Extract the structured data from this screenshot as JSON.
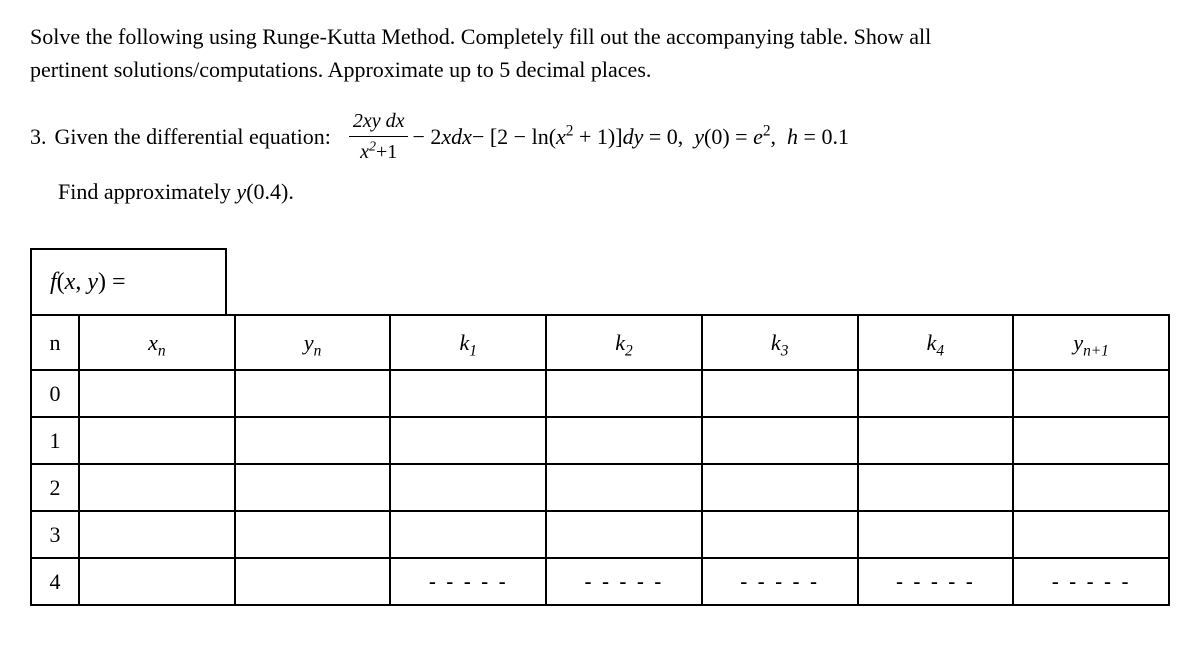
{
  "instruction_line1": "Solve the following using Runge-Kutta Method. Completely fill out the accompanying table. Show all",
  "instruction_line2": "pertinent solutions/computations. Approximate up to 5 decimal places.",
  "problem": {
    "number": "3.",
    "lead_text": "Given the differential equation:",
    "frac_num": "2xy dx",
    "frac_den_left": "x",
    "frac_den_sup": "2",
    "frac_den_right": "+1",
    "minus1": " − 2",
    "xdx": "xdx",
    "minus2": " − [2 − ln(",
    "x2": "x",
    "x2_sup": "2",
    "plus1": " + 1)]",
    "dy": "dy",
    "eq_zero": " = 0,",
    "y0": "y",
    "y0_arg": "(0) = ",
    "e": "e",
    "e_sup": "2",
    "comma": ",",
    "h": "h",
    "h_val": " = 0.1",
    "find": "Find approximately ",
    "find_y": "y",
    "find_y_arg": "(0.4)."
  },
  "fxy": {
    "f": "f",
    "paren_open": "(",
    "x": "x",
    "comma": ", ",
    "y": "y",
    "paren_close": ") ="
  },
  "table": {
    "headers": {
      "n": "n",
      "xn": "x",
      "xn_sub": "n",
      "yn": "y",
      "yn_sub": "n",
      "k1": "k",
      "k1_sub": "1",
      "k2": "k",
      "k2_sub": "2",
      "k3": "k",
      "k3_sub": "3",
      "k4": "k",
      "k4_sub": "4",
      "yn1": "y",
      "yn1_sub": "n+1"
    },
    "rows": [
      {
        "n": "0",
        "xn": "",
        "yn": "",
        "k1": "",
        "k2": "",
        "k3": "",
        "k4": "",
        "yn1": ""
      },
      {
        "n": "1",
        "xn": "",
        "yn": "",
        "k1": "",
        "k2": "",
        "k3": "",
        "k4": "",
        "yn1": ""
      },
      {
        "n": "2",
        "xn": "",
        "yn": "",
        "k1": "",
        "k2": "",
        "k3": "",
        "k4": "",
        "yn1": ""
      },
      {
        "n": "3",
        "xn": "",
        "yn": "",
        "k1": "",
        "k2": "",
        "k3": "",
        "k4": "",
        "yn1": ""
      },
      {
        "n": "4",
        "xn": "",
        "yn": "",
        "k1": "- - - - -",
        "k2": "- - - - -",
        "k3": "- - - - -",
        "k4": "- - - - -",
        "yn1": "- - - - -"
      }
    ]
  },
  "colors": {
    "background": "#ffffff",
    "text": "#000000",
    "border": "#000000"
  }
}
